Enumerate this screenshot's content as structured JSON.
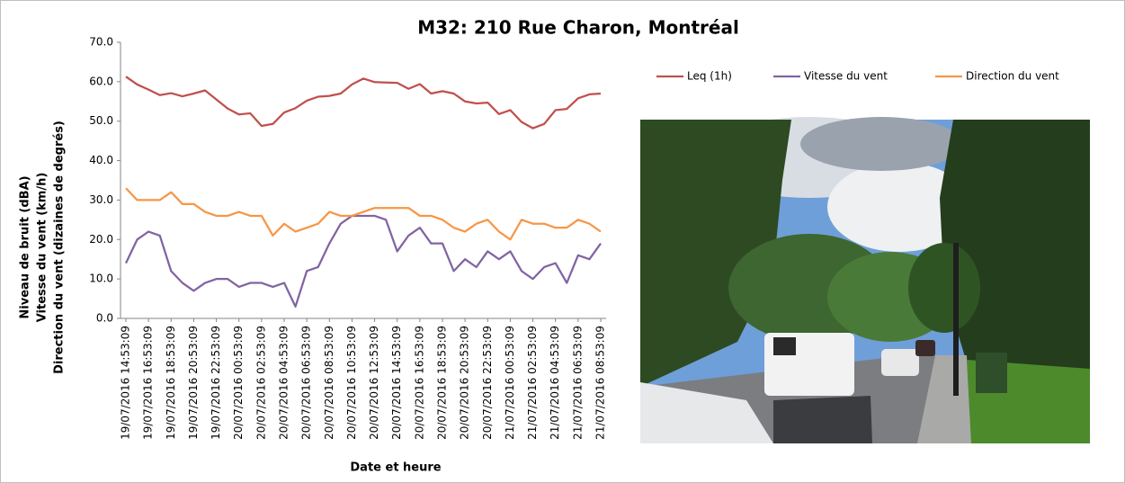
{
  "chart_data": {
    "type": "line",
    "title": "M32: 210 Rue Charon, Montréal",
    "x_label": "Date et heure",
    "y_label": [
      "Niveau de bruit (dBA)",
      "Vitesse du vent (km/h)",
      "Direction du vent (dizaines de degrés)"
    ],
    "categories": [
      "19/07/2016 14:53:09",
      null,
      "19/07/2016 16:53:09",
      null,
      "19/07/2016 18:53:09",
      null,
      "19/07/2016 20:53:09",
      null,
      "19/07/2016 22:53:09",
      null,
      "20/07/2016 00:53:09",
      null,
      "20/07/2016 02:53:09",
      null,
      "20/07/2016 04:53:09",
      null,
      "20/07/2016 06:53:09",
      null,
      "20/07/2016 08:53:09",
      null,
      "20/07/2016 10:53:09",
      null,
      "20/07/2016 12:53:09",
      null,
      "20/07/2016 14:53:09",
      null,
      "20/07/2016 16:53:09",
      null,
      "20/07/2016 18:53:09",
      null,
      "20/07/2016 20:53:09",
      null,
      "20/07/2016 22:53:09",
      null,
      "21/07/2016 00:53:09",
      null,
      "21/07/2016 02:53:09",
      null,
      "21/07/2016 04:53:09",
      null,
      "21/07/2016 06:53:09",
      null,
      "21/07/2016 08:53:09"
    ],
    "series": [
      {
        "name": "Leq (1h)",
        "color": "#c0504d",
        "values": [
          61.3,
          59.3,
          58.0,
          56.6,
          57.1,
          56.3,
          57.0,
          57.8,
          55.5,
          53.2,
          51.7,
          52.0,
          48.8,
          49.3,
          52.2,
          53.3,
          55.2,
          56.2,
          56.4,
          57.0,
          59.3,
          60.8,
          59.9,
          59.8,
          59.7,
          58.2,
          59.4,
          57.0,
          57.6,
          57.0,
          55.0,
          54.5,
          54.7,
          51.8,
          52.8,
          49.8,
          48.2,
          49.3,
          52.8,
          53.1,
          55.8,
          56.8,
          57.0
        ]
      },
      {
        "name": "Vitesse du vent",
        "color": "#8064a2",
        "values": [
          14,
          20,
          22,
          21,
          12,
          9,
          7,
          9,
          10,
          10,
          8,
          9,
          9,
          8,
          9,
          3,
          12,
          13,
          19,
          24,
          26,
          26,
          26,
          25,
          17,
          21,
          23,
          19,
          19,
          12,
          15,
          13,
          17,
          15,
          17,
          12,
          10,
          13,
          14,
          9,
          16,
          15,
          19
        ]
      },
      {
        "name": "Direction du vent",
        "color": "#f79646",
        "values": [
          33,
          30,
          30,
          30,
          32,
          29,
          29,
          27,
          26,
          26,
          27,
          26,
          26,
          21,
          24,
          22,
          23,
          24,
          27,
          26,
          26,
          27,
          28,
          28,
          28,
          28,
          26,
          26,
          25,
          23,
          22,
          24,
          25,
          22,
          20,
          25,
          24,
          24,
          23,
          23,
          25,
          24,
          22
        ]
      }
    ],
    "ylim": [
      0,
      70
    ],
    "yticks": [
      {
        "value": 0,
        "label": "0.0"
      },
      {
        "value": 10,
        "label": "10.0"
      },
      {
        "value": 20,
        "label": "20.0"
      },
      {
        "value": 30,
        "label": "30.0"
      },
      {
        "value": 40,
        "label": "40.0"
      },
      {
        "value": 50,
        "label": "50.0"
      },
      {
        "value": 60,
        "label": "60.0"
      },
      {
        "value": 70,
        "label": "70.0"
      }
    ],
    "grid": false,
    "legend": "top-right"
  }
}
